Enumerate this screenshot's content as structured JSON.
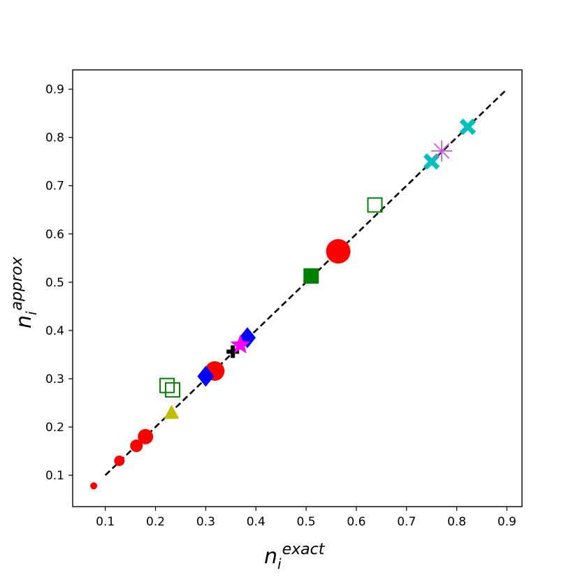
{
  "chart_data": {
    "type": "scatter",
    "title": "",
    "xlabel": {
      "base": "n",
      "sub": "i",
      "sup": "exact"
    },
    "ylabel": {
      "base": "n",
      "sub": "i",
      "sup": "approx"
    },
    "xlim": [
      0.035,
      0.93
    ],
    "ylim": [
      0.035,
      0.94
    ],
    "xticks": [
      "0.1",
      "0.2",
      "0.3",
      "0.4",
      "0.5",
      "0.6",
      "0.7",
      "0.8",
      "0.9"
    ],
    "yticks": [
      "0.1",
      "0.2",
      "0.3",
      "0.4",
      "0.5",
      "0.6",
      "0.7",
      "0.8",
      "0.9"
    ],
    "grid": false,
    "reference_line": {
      "style": "dashed",
      "color": "#000000",
      "x": [
        0.1,
        0.9
      ],
      "y": [
        0.1,
        0.9
      ]
    },
    "series": [
      {
        "marker": "circle",
        "color": "#ff0000",
        "points": [
          {
            "x": 0.077,
            "y": 0.078,
            "size": "xs"
          },
          {
            "x": 0.128,
            "y": 0.13,
            "size": "sm"
          },
          {
            "x": 0.162,
            "y": 0.161,
            "size": "md"
          },
          {
            "x": 0.18,
            "y": 0.18,
            "size": "lg"
          },
          {
            "x": 0.318,
            "y": 0.316,
            "size": "xl"
          },
          {
            "x": 0.564,
            "y": 0.564,
            "size": "xxl"
          }
        ]
      },
      {
        "marker": "triangle",
        "color": "#bfbf00",
        "points": [
          {
            "x": 0.232,
            "y": 0.23
          }
        ]
      },
      {
        "marker": "square-open",
        "color": "#008000",
        "points": [
          {
            "x": 0.223,
            "y": 0.286
          },
          {
            "x": 0.234,
            "y": 0.277
          },
          {
            "x": 0.637,
            "y": 0.66
          }
        ]
      },
      {
        "marker": "square",
        "color": "#008000",
        "points": [
          {
            "x": 0.51,
            "y": 0.513
          }
        ]
      },
      {
        "marker": "diamond",
        "color": "#0000ff",
        "points": [
          {
            "x": 0.3,
            "y": 0.305
          },
          {
            "x": 0.383,
            "y": 0.385
          }
        ]
      },
      {
        "marker": "plus-thick",
        "color": "#000000",
        "points": [
          {
            "x": 0.354,
            "y": 0.356
          }
        ]
      },
      {
        "marker": "star",
        "color": "#ff00ff",
        "points": [
          {
            "x": 0.369,
            "y": 0.37
          }
        ]
      },
      {
        "marker": "x-thick",
        "color": "#00bfbf",
        "points": [
          {
            "x": 0.75,
            "y": 0.75
          },
          {
            "x": 0.822,
            "y": 0.822
          }
        ]
      },
      {
        "marker": "asterisk",
        "color": "#bf5fd0",
        "points": [
          {
            "x": 0.77,
            "y": 0.772
          }
        ]
      }
    ]
  }
}
